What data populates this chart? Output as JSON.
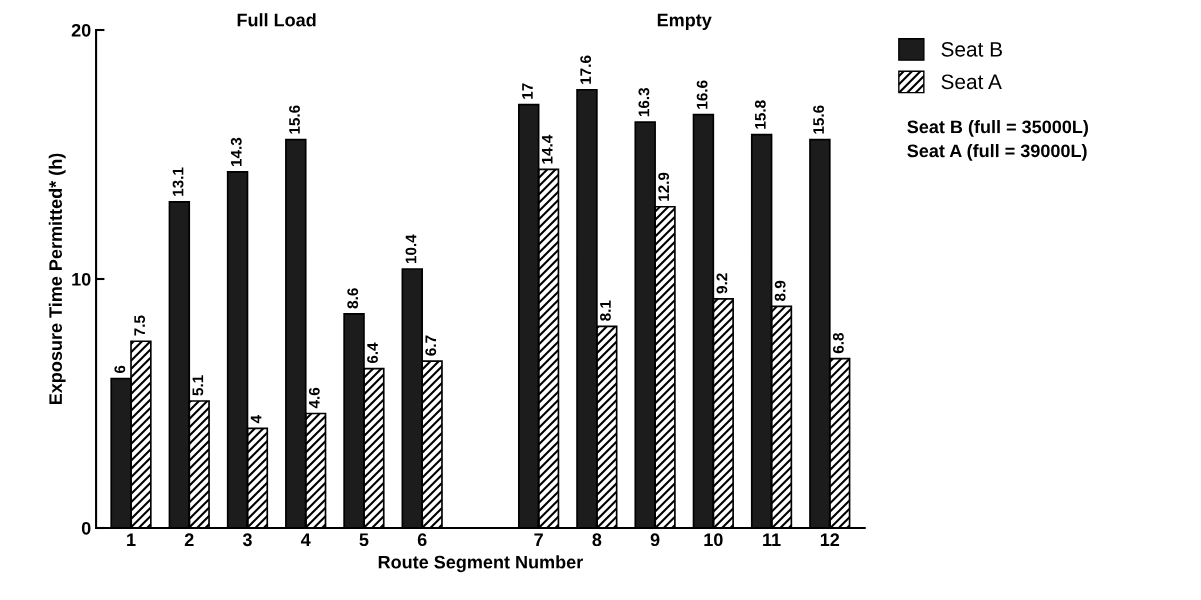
{
  "chart_data": {
    "type": "bar",
    "xlabel": "Route Segment Number",
    "ylabel": "Exposure Time Permitted* (h)",
    "categories": [
      "1",
      "2",
      "3",
      "4",
      "5",
      "6",
      null,
      "7",
      "8",
      "9",
      "10",
      "11",
      "12"
    ],
    "series": [
      {
        "name": "Seat B",
        "color": "#1c1c1c",
        "values": [
          6,
          13.1,
          14.3,
          15.6,
          8.6,
          10.4,
          null,
          17,
          17.6,
          16.3,
          16.6,
          15.8,
          15.6
        ]
      },
      {
        "name": "Seat A",
        "color": "#000000",
        "values": [
          7.5,
          5.1,
          4,
          4.6,
          6.4,
          6.7,
          null,
          14.4,
          8.1,
          12.9,
          9.2,
          8.9,
          6.8
        ]
      }
    ],
    "ylim": [
      0,
      20
    ],
    "yticks": [
      0,
      10,
      20
    ],
    "data_labels": true,
    "grid": false,
    "legend": "top right",
    "annotations": [
      "Full Load",
      "Empty",
      "Seat B (full = 35000L)",
      "Seat A (full = 39000L)"
    ]
  }
}
